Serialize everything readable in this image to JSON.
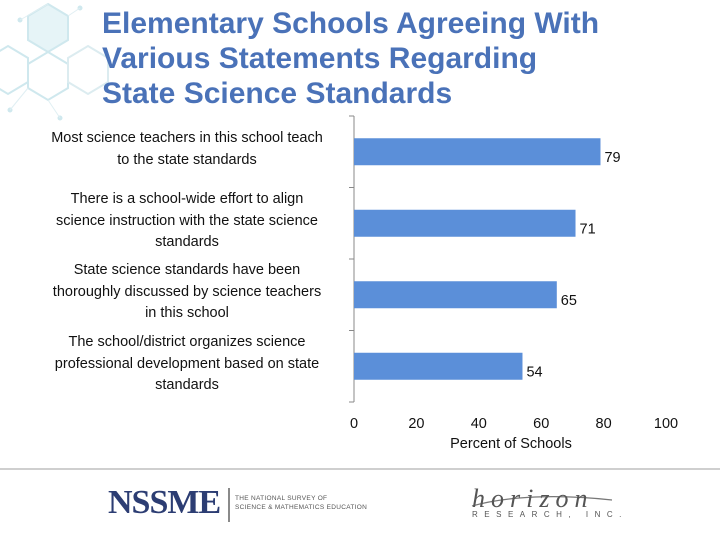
{
  "slide": {
    "title_lines": [
      "Elementary Schools Agreeing With",
      "Various Statements Regarding",
      "State Science Standards"
    ]
  },
  "chart_data": {
    "type": "bar",
    "orientation": "horizontal",
    "categories": [
      [
        "Most science teachers in this school teach",
        "to the state standards"
      ],
      [
        "There is a school-wide effort to align",
        "science instruction with the state science",
        "standards"
      ],
      [
        "State science standards have been",
        "thoroughly discussed by science teachers",
        "in this school"
      ],
      [
        "The school/district organizes science",
        "professional development based on state",
        "standards"
      ]
    ],
    "values": [
      79,
      71,
      65,
      54
    ],
    "xlabel": "Percent of Schools",
    "xlim": [
      0,
      100
    ],
    "xticks": [
      "0",
      "20",
      "40",
      "60",
      "80",
      "100"
    ],
    "bar_color": "#5b8fd9",
    "grid": false
  },
  "footer": {
    "logo_left": "NSSME",
    "logo_left_sub": [
      "THE NATIONAL SURVEY OF",
      "SCIENCE & MATHEMATICS EDUCATION"
    ],
    "logo_right": "horizon",
    "logo_right_sub": "RESEARCH, INC."
  }
}
